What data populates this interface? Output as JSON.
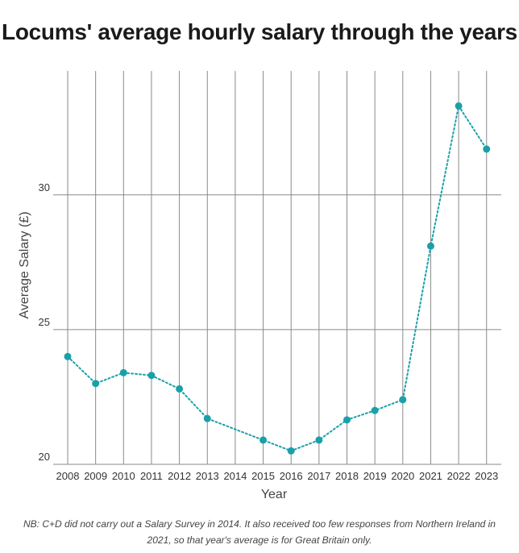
{
  "title": "Locums' average hourly salary through the years",
  "note_line1": "NB: C+D did not carry out a Salary Survey in 2014. It also received too few responses from Northern Ireland in",
  "note_line2": "2021, so that year's average is for Great Britain only.",
  "colors": {
    "series": "#1aa0a8",
    "grid": "#8a8a8a"
  },
  "chart_data": {
    "type": "line",
    "title": "Locums' average hourly salary through the years",
    "xlabel": "Year",
    "ylabel": "Average Salary (£)",
    "categories": [
      "2008",
      "2009",
      "2010",
      "2011",
      "2012",
      "2013",
      "2014",
      "2015",
      "2016",
      "2017",
      "2018",
      "2019",
      "2020",
      "2021",
      "2022",
      "2023"
    ],
    "x": [
      2008,
      2009,
      2010,
      2011,
      2012,
      2013,
      2015,
      2016,
      2017,
      2018,
      2019,
      2020,
      2021,
      2022,
      2023
    ],
    "y": [
      24.0,
      23.0,
      23.4,
      23.3,
      22.8,
      21.7,
      20.9,
      20.5,
      20.9,
      21.65,
      22.0,
      22.4,
      28.1,
      33.3,
      31.7
    ],
    "ylim": [
      20,
      34.6
    ],
    "yticks": [
      20,
      25,
      30
    ],
    "grid": true,
    "line_style": "dotted"
  }
}
